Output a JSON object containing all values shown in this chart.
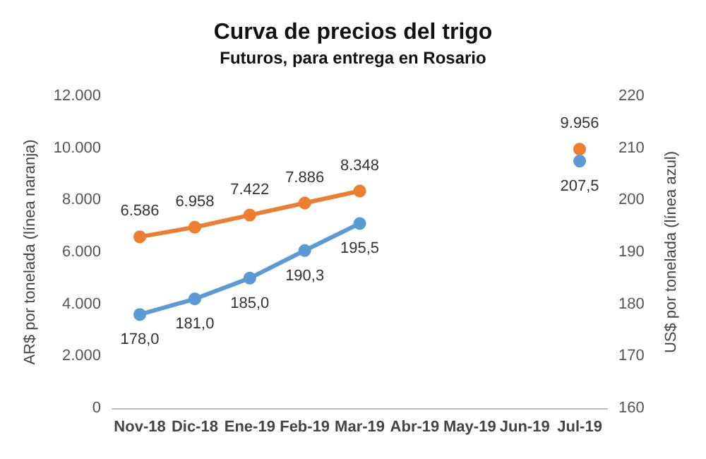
{
  "chart_data": {
    "type": "line",
    "title": "Curva de precios del trigo",
    "subtitle": "Futuros, para entrega en Rosario",
    "ylabel": "AR$ por tonelada (línea naranja)",
    "y2label": "US$ por tonelada (línea azul)",
    "categories": [
      "Nov-18",
      "Dic-18",
      "Ene-19",
      "Feb-19",
      "Mar-19",
      "Abr-19",
      "May-19",
      "Jun-19",
      "Jul-19"
    ],
    "series": [
      {
        "color": "#ed7d31",
        "values": [
          6586,
          6958,
          7422,
          7886,
          8348,
          null,
          null,
          null,
          9956
        ],
        "value_labels": [
          "6.586",
          "6.958",
          "7.422",
          "7.886",
          "8.348",
          null,
          null,
          null,
          "9.956"
        ]
      },
      {
        "color": "#5b9bd5",
        "axis": "y2",
        "values": [
          178.0,
          181.0,
          185.0,
          190.3,
          195.5,
          null,
          null,
          null,
          207.5
        ],
        "value_labels": [
          "178,0",
          "181,0",
          "185,0",
          "190,3",
          "195,5",
          null,
          null,
          null,
          "207,5"
        ]
      }
    ],
    "ylim": [
      0,
      12000
    ],
    "yticks": [
      0,
      {
        "value": 2000,
        "label": "2.000"
      },
      {
        "value": 4000,
        "label": "4.000"
      },
      {
        "value": 6000,
        "label": "6.000"
      },
      {
        "value": 8000,
        "label": "8.000"
      },
      {
        "value": 10000,
        "label": "10.000"
      },
      {
        "value": 12000,
        "label": "12.000"
      }
    ],
    "y2lim": [
      160,
      220
    ],
    "y2ticks": [
      160,
      170,
      180,
      190,
      200,
      210,
      220
    ],
    "marker": "circle",
    "line_style": "solid",
    "grid": false
  }
}
